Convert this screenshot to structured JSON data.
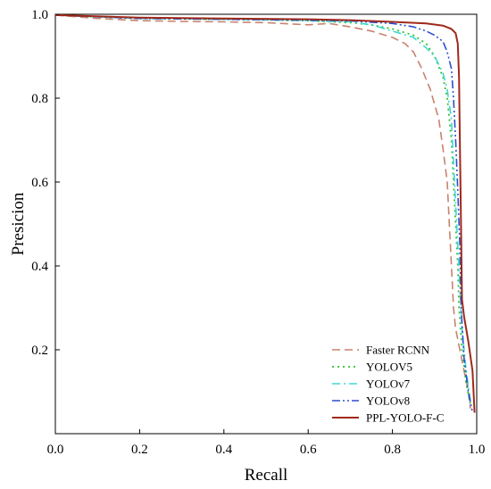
{
  "chart_data": {
    "type": "line",
    "title": "",
    "xlabel": "Recall",
    "ylabel": "Presicion",
    "xlim": [
      0.0,
      1.0
    ],
    "ylim": [
      0.0,
      1.0
    ],
    "x_ticks": [
      0.0,
      0.2,
      0.4,
      0.6,
      0.8,
      1.0
    ],
    "y_ticks": [
      0.2,
      0.4,
      0.6,
      0.8,
      1.0
    ],
    "x_tick_labels": [
      "0.0",
      "0.2",
      "0.4",
      "0.6",
      "0.8",
      "1.0"
    ],
    "y_tick_labels": [
      "0.2",
      "0.4",
      "0.6",
      "0.8",
      "1.0"
    ],
    "grid": false,
    "legend_position": "bottom-right",
    "series": [
      {
        "name": "Faster RCNN",
        "color": "#c8826c",
        "dash": "dashed",
        "points": [
          [
            0.0,
            0.998
          ],
          [
            0.1,
            0.99
          ],
          [
            0.2,
            0.985
          ],
          [
            0.3,
            0.983
          ],
          [
            0.4,
            0.982
          ],
          [
            0.5,
            0.98
          ],
          [
            0.6,
            0.975
          ],
          [
            0.65,
            0.978
          ],
          [
            0.7,
            0.97
          ],
          [
            0.75,
            0.96
          ],
          [
            0.8,
            0.945
          ],
          [
            0.83,
            0.93
          ],
          [
            0.85,
            0.91
          ],
          [
            0.87,
            0.87
          ],
          [
            0.89,
            0.82
          ],
          [
            0.91,
            0.75
          ],
          [
            0.92,
            0.68
          ],
          [
            0.93,
            0.6
          ],
          [
            0.935,
            0.5
          ],
          [
            0.94,
            0.4
          ],
          [
            0.945,
            0.3
          ],
          [
            0.95,
            0.25
          ],
          [
            0.96,
            0.2
          ],
          [
            0.97,
            0.15
          ],
          [
            0.98,
            0.1
          ],
          [
            0.985,
            0.06
          ]
        ]
      },
      {
        "name": "YOLOV5",
        "color": "#2fc22f",
        "dash": "dotted",
        "points": [
          [
            0.0,
            0.998
          ],
          [
            0.2,
            0.99
          ],
          [
            0.4,
            0.988
          ],
          [
            0.6,
            0.985
          ],
          [
            0.7,
            0.98
          ],
          [
            0.75,
            0.975
          ],
          [
            0.8,
            0.965
          ],
          [
            0.85,
            0.95
          ],
          [
            0.88,
            0.93
          ],
          [
            0.9,
            0.9
          ],
          [
            0.92,
            0.85
          ],
          [
            0.93,
            0.8
          ],
          [
            0.94,
            0.7
          ],
          [
            0.945,
            0.6
          ],
          [
            0.95,
            0.5
          ],
          [
            0.955,
            0.4
          ],
          [
            0.958,
            0.3
          ],
          [
            0.965,
            0.2
          ],
          [
            0.975,
            0.12
          ],
          [
            0.985,
            0.07
          ]
        ]
      },
      {
        "name": "YOLOv7",
        "color": "#3ed8d3",
        "dash": "dash-dot",
        "points": [
          [
            0.0,
            0.998
          ],
          [
            0.2,
            0.99
          ],
          [
            0.4,
            0.988
          ],
          [
            0.6,
            0.985
          ],
          [
            0.7,
            0.982
          ],
          [
            0.75,
            0.975
          ],
          [
            0.8,
            0.96
          ],
          [
            0.85,
            0.945
          ],
          [
            0.88,
            0.92
          ],
          [
            0.9,
            0.9
          ],
          [
            0.92,
            0.86
          ],
          [
            0.93,
            0.82
          ],
          [
            0.94,
            0.75
          ],
          [
            0.945,
            0.65
          ],
          [
            0.95,
            0.55
          ],
          [
            0.955,
            0.45
          ],
          [
            0.96,
            0.35
          ],
          [
            0.965,
            0.25
          ],
          [
            0.975,
            0.15
          ],
          [
            0.985,
            0.08
          ]
        ]
      },
      {
        "name": "YOLOv8",
        "color": "#2b4fd1",
        "dash": "dash-dot-dot",
        "points": [
          [
            0.0,
            0.998
          ],
          [
            0.2,
            0.99
          ],
          [
            0.4,
            0.988
          ],
          [
            0.6,
            0.986
          ],
          [
            0.7,
            0.984
          ],
          [
            0.8,
            0.978
          ],
          [
            0.85,
            0.97
          ],
          [
            0.88,
            0.96
          ],
          [
            0.9,
            0.95
          ],
          [
            0.92,
            0.935
          ],
          [
            0.93,
            0.91
          ],
          [
            0.94,
            0.87
          ],
          [
            0.945,
            0.8
          ],
          [
            0.95,
            0.7
          ],
          [
            0.955,
            0.58
          ],
          [
            0.96,
            0.45
          ],
          [
            0.963,
            0.3
          ],
          [
            0.97,
            0.18
          ],
          [
            0.98,
            0.1
          ],
          [
            0.99,
            0.05
          ]
        ]
      },
      {
        "name": "PPL-YOLO-F-C",
        "color": "#a0291b",
        "dash": "solid",
        "points": [
          [
            0.0,
            0.998
          ],
          [
            0.2,
            0.992
          ],
          [
            0.4,
            0.99
          ],
          [
            0.6,
            0.988
          ],
          [
            0.7,
            0.986
          ],
          [
            0.8,
            0.982
          ],
          [
            0.88,
            0.978
          ],
          [
            0.92,
            0.973
          ],
          [
            0.94,
            0.965
          ],
          [
            0.95,
            0.955
          ],
          [
            0.955,
            0.93
          ],
          [
            0.958,
            0.85
          ],
          [
            0.96,
            0.7
          ],
          [
            0.962,
            0.55
          ],
          [
            0.964,
            0.4
          ],
          [
            0.965,
            0.32
          ],
          [
            0.97,
            0.28
          ],
          [
            0.98,
            0.22
          ],
          [
            0.99,
            0.15
          ],
          [
            0.995,
            0.05
          ]
        ]
      }
    ]
  }
}
